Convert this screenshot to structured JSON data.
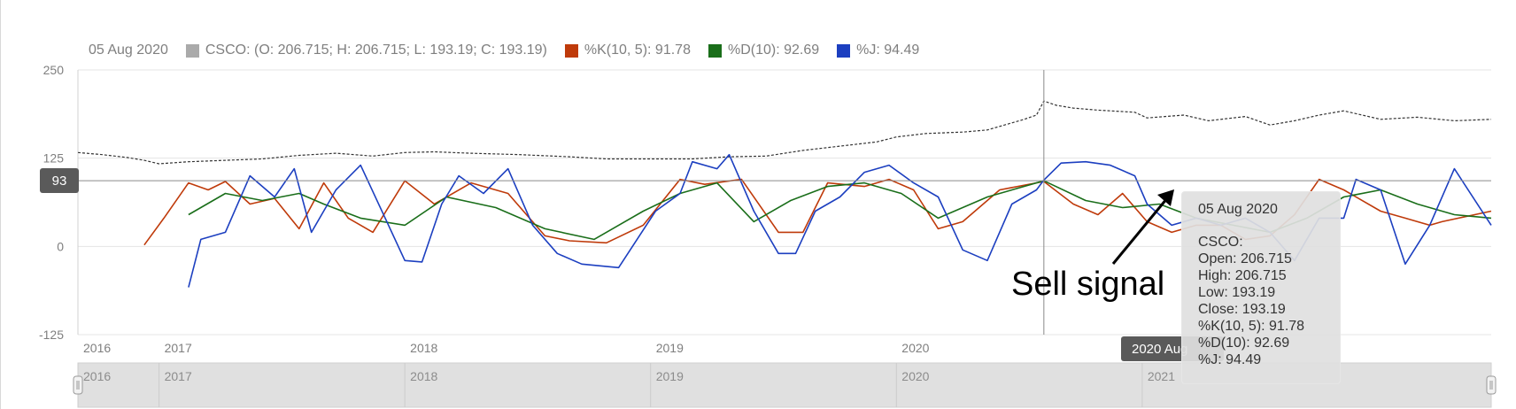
{
  "legend": {
    "date": "05 Aug 2020",
    "ohlc": "CSCO: (O: 206.715; H: 206.715; L: 193.19; C: 193.19)",
    "k": "%K(10, 5): 91.78",
    "d": "%D(10): 92.69",
    "j": "%J: 94.49"
  },
  "crosshair": {
    "y_label": "93",
    "x_label": "2020 Aug"
  },
  "annotation": {
    "text": "Sell signal"
  },
  "tooltip": {
    "date": "05 Aug 2020",
    "ticker": "CSCO:",
    "open": "Open: 206.715",
    "high": "High: 206.715",
    "low": "Low: 193.19",
    "close": "Close: 193.19",
    "k": "%K(10, 5): 91.78",
    "d": "%D(10): 92.69",
    "j": "%J: 94.49"
  },
  "colors": {
    "price": "#333333",
    "k": "#bf3a0a",
    "d": "#1a6e1a",
    "j": "#1c3fc0",
    "ohlc_swatch": "#aaaaaa",
    "grid": "#e5e5e5",
    "axis_text": "#7f7f7f"
  },
  "chart_data": {
    "type": "line",
    "title": "",
    "xlabel": "",
    "ylabel": "",
    "ylim": [
      -125,
      250
    ],
    "yticks": [
      -125,
      0,
      125,
      250
    ],
    "xlim": [
      2016.0,
      2021.75
    ],
    "xticks": [
      {
        "label": "2016",
        "x": 2016.0
      },
      {
        "label": "2017",
        "x": 2016.33
      },
      {
        "label": "2018",
        "x": 2017.33
      },
      {
        "label": "2019",
        "x": 2018.33
      },
      {
        "label": "2020",
        "x": 2019.33
      }
    ],
    "navigator_ticks": [
      {
        "label": "2016",
        "x": 2016.0
      },
      {
        "label": "2017",
        "x": 2016.33
      },
      {
        "label": "2018",
        "x": 2017.33
      },
      {
        "label": "2019",
        "x": 2018.33
      },
      {
        "label": "2020",
        "x": 2019.33
      },
      {
        "label": "2021",
        "x": 2020.33
      }
    ],
    "crosshair_x": 2019.93,
    "crosshair_y": 93,
    "series": [
      {
        "name": "CSCO",
        "key": "price",
        "x": [
          2016.0,
          2016.1,
          2016.2,
          2016.27,
          2016.33,
          2016.45,
          2016.6,
          2016.75,
          2016.9,
          2017.05,
          2017.2,
          2017.33,
          2017.45,
          2017.6,
          2017.8,
          2018.0,
          2018.15,
          2018.33,
          2018.5,
          2018.65,
          2018.8,
          2018.95,
          2019.1,
          2019.25,
          2019.33,
          2019.45,
          2019.6,
          2019.7,
          2019.8,
          2019.85,
          2019.9,
          2019.93,
          2019.98,
          2020.05,
          2020.15,
          2020.3,
          2020.35,
          2020.5,
          2020.6,
          2020.75,
          2020.85,
          2020.95,
          2021.05,
          2021.15,
          2021.3,
          2021.45,
          2021.6,
          2021.75
        ],
        "values": [
          133,
          130,
          126,
          122,
          117,
          120,
          122,
          124,
          129,
          132,
          128,
          133,
          134,
          132,
          130,
          127,
          124,
          124,
          124,
          127,
          128,
          136,
          142,
          148,
          155,
          160,
          162,
          165,
          175,
          180,
          186,
          206,
          200,
          196,
          193,
          190,
          182,
          186,
          178,
          184,
          172,
          178,
          186,
          192,
          180,
          183,
          178,
          180
        ]
      },
      {
        "name": "%K(10, 5)",
        "key": "k",
        "x": [
          2016.27,
          2016.35,
          2016.45,
          2016.53,
          2016.6,
          2016.7,
          2016.8,
          2016.9,
          2017.0,
          2017.1,
          2017.2,
          2017.33,
          2017.45,
          2017.6,
          2017.75,
          2017.9,
          2018.0,
          2018.15,
          2018.3,
          2018.45,
          2018.55,
          2018.7,
          2018.85,
          2018.95,
          2019.05,
          2019.2,
          2019.3,
          2019.4,
          2019.5,
          2019.6,
          2019.75,
          2019.93,
          2020.05,
          2020.15,
          2020.25,
          2020.35,
          2020.45,
          2020.55,
          2020.65,
          2020.75,
          2020.85,
          2020.95,
          2021.05,
          2021.15,
          2021.3,
          2021.4,
          2021.5,
          2021.55,
          2021.75
        ],
        "values": [
          2,
          40,
          90,
          80,
          92,
          60,
          68,
          25,
          90,
          40,
          20,
          93,
          60,
          90,
          75,
          15,
          8,
          5,
          30,
          95,
          88,
          95,
          20,
          20,
          90,
          85,
          95,
          80,
          25,
          35,
          80,
          92,
          60,
          45,
          75,
          35,
          20,
          30,
          30,
          10,
          15,
          45,
          95,
          80,
          50,
          40,
          30,
          35,
          50
        ]
      },
      {
        "name": "%D(10)",
        "key": "d",
        "x": [
          2016.45,
          2016.6,
          2016.75,
          2016.9,
          2017.0,
          2017.15,
          2017.33,
          2017.5,
          2017.7,
          2017.9,
          2018.1,
          2018.3,
          2018.45,
          2018.6,
          2018.75,
          2018.9,
          2019.05,
          2019.2,
          2019.35,
          2019.5,
          2019.7,
          2019.93,
          2020.1,
          2020.25,
          2020.4,
          2020.55,
          2020.7,
          2020.85,
          2021.0,
          2021.15,
          2021.3,
          2021.45,
          2021.6,
          2021.75
        ],
        "values": [
          45,
          75,
          65,
          75,
          60,
          40,
          30,
          70,
          55,
          25,
          10,
          50,
          75,
          90,
          35,
          65,
          85,
          90,
          75,
          40,
          70,
          93,
          65,
          55,
          60,
          40,
          30,
          20,
          40,
          70,
          80,
          60,
          45,
          40
        ]
      },
      {
        "name": "%J",
        "key": "j",
        "x": [
          2016.45,
          2016.5,
          2016.6,
          2016.7,
          2016.8,
          2016.88,
          2016.95,
          2017.05,
          2017.15,
          2017.25,
          2017.33,
          2017.4,
          2017.48,
          2017.55,
          2017.65,
          2017.75,
          2017.85,
          2017.95,
          2018.05,
          2018.2,
          2018.35,
          2018.45,
          2018.5,
          2018.6,
          2018.65,
          2018.75,
          2018.85,
          2018.92,
          2019.0,
          2019.1,
          2019.2,
          2019.3,
          2019.4,
          2019.5,
          2019.6,
          2019.7,
          2019.8,
          2019.9,
          2019.93,
          2020.0,
          2020.1,
          2020.2,
          2020.3,
          2020.35,
          2020.45,
          2020.55,
          2020.65,
          2020.75,
          2020.85,
          2020.95,
          2021.05,
          2021.15,
          2021.2,
          2021.3,
          2021.4,
          2021.5,
          2021.6,
          2021.75
        ],
        "values": [
          -58,
          10,
          20,
          100,
          70,
          110,
          20,
          80,
          115,
          40,
          -20,
          -22,
          60,
          100,
          75,
          110,
          30,
          -10,
          -25,
          -30,
          50,
          75,
          120,
          110,
          130,
          50,
          -10,
          -10,
          50,
          70,
          105,
          115,
          90,
          70,
          -5,
          -20,
          60,
          80,
          94,
          118,
          120,
          115,
          100,
          60,
          30,
          40,
          30,
          40,
          20,
          -20,
          40,
          40,
          95,
          80,
          -25,
          30,
          110,
          30
        ]
      }
    ]
  }
}
